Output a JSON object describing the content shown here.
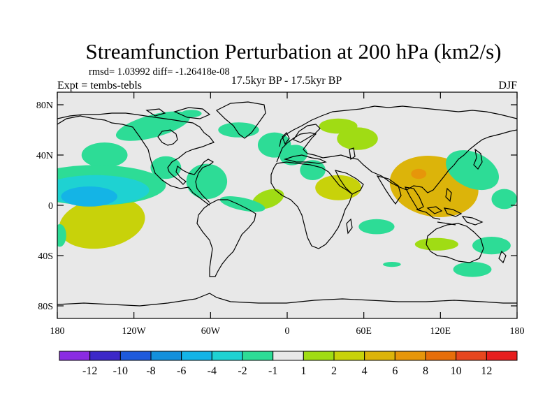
{
  "chart_data": {
    "type": "heatmap",
    "title": "Streamfunction Perturbation at 200 hPa (km2/s)",
    "stats": "rmsd= 1.03992 diff= -1.26418e-08",
    "left_label": "Expt = tembs-tebls",
    "center_label": "17.5kyr BP - 17.5kyr BP",
    "right_label": "DJF",
    "lon_range": [
      -180,
      180
    ],
    "lat_range": [
      -90,
      90
    ],
    "xticks": [
      {
        "value": -180,
        "label": "180"
      },
      {
        "value": -120,
        "label": "120W"
      },
      {
        "value": -60,
        "label": "60W"
      },
      {
        "value": 0,
        "label": "0"
      },
      {
        "value": 60,
        "label": "60E"
      },
      {
        "value": 120,
        "label": "120E"
      },
      {
        "value": 180,
        "label": "180"
      }
    ],
    "yticks": [
      {
        "value": 80,
        "label": "80N"
      },
      {
        "value": 40,
        "label": "40N"
      },
      {
        "value": 0,
        "label": "0"
      },
      {
        "value": -40,
        "label": "40S"
      },
      {
        "value": -80,
        "label": "80S"
      }
    ],
    "colorbar": {
      "colors": [
        "#8a2be2",
        "#3c28c8",
        "#1e5adc",
        "#1490dc",
        "#14b4e6",
        "#1ed2d2",
        "#2ddc96",
        "#e8e8e8",
        "#a0dc14",
        "#c8d20a",
        "#dcb40a",
        "#e6960a",
        "#e66e0a",
        "#e6461e",
        "#e61e1e"
      ],
      "labels": [
        "-12",
        "-10",
        "-8",
        "-6",
        "-4",
        "-2",
        "-1",
        "1",
        "2",
        "4",
        "6",
        "8",
        "10",
        "12"
      ]
    },
    "field_features": [
      {
        "lon": -105,
        "lat": 63,
        "rx": 30,
        "ry": 9,
        "value": -1.2,
        "angle": -15
      },
      {
        "lon": -38,
        "lat": 60,
        "rx": 16,
        "ry": 6,
        "value": -1.2
      },
      {
        "lon": -75,
        "lat": 73,
        "rx": 8,
        "ry": 3,
        "value": -1.2
      },
      {
        "lon": -10,
        "lat": 48,
        "rx": 13,
        "ry": 10,
        "value": -1.2
      },
      {
        "lon": -95,
        "lat": 30,
        "rx": 12,
        "ry": 9,
        "value": -1.2
      },
      {
        "lon": -143,
        "lat": 40,
        "rx": 18,
        "ry": 10,
        "value": -1.3
      },
      {
        "lon": -63,
        "lat": 19,
        "rx": 16,
        "ry": 14,
        "value": -1.5
      },
      {
        "lon": 5,
        "lat": 40,
        "rx": 11,
        "ry": 8,
        "value": -1.3,
        "angle": -10
      },
      {
        "lon": 20,
        "lat": 28,
        "rx": 10,
        "ry": 8,
        "value": -1.3
      },
      {
        "lon": 40,
        "lat": 63,
        "rx": 15,
        "ry": 6,
        "value": 1.5
      },
      {
        "lon": 55,
        "lat": 53,
        "rx": 16,
        "ry": 9,
        "value": 1.5
      },
      {
        "lon": 40,
        "lat": 14,
        "rx": 18,
        "ry": 10,
        "value": 2.5
      },
      {
        "lon": -15,
        "lat": 5,
        "rx": 13,
        "ry": 7,
        "value": 1.5,
        "angle": -20
      },
      {
        "lon": -145,
        "lat": -14,
        "rx": 34,
        "ry": 20,
        "value": 3.5,
        "angle": -10
      },
      {
        "lon": -150,
        "lat": 16,
        "rx": 55,
        "ry": 16,
        "value": -1.5
      },
      {
        "lon": -150,
        "lat": 12,
        "rx": 42,
        "ry": 12,
        "value": -3.0
      },
      {
        "lon": -155,
        "lat": 7,
        "rx": 22,
        "ry": 8,
        "value": -4.5
      },
      {
        "lon": 115,
        "lat": 15,
        "rx": 35,
        "ry": 24,
        "value": 4.5,
        "angle": 10
      },
      {
        "lon": 103,
        "lat": 25,
        "rx": 6,
        "ry": 4,
        "value": 7
      },
      {
        "lon": 145,
        "lat": 28,
        "rx": 22,
        "ry": 14,
        "value": -2.0,
        "angle": 25
      },
      {
        "lon": 170,
        "lat": 5,
        "rx": 10,
        "ry": 8,
        "value": -1.3
      },
      {
        "lon": 70,
        "lat": -17,
        "rx": 14,
        "ry": 6,
        "value": -1.5
      },
      {
        "lon": 117,
        "lat": -31,
        "rx": 17,
        "ry": 5,
        "value": 1.5
      },
      {
        "lon": 160,
        "lat": -32,
        "rx": 15,
        "ry": 7,
        "value": -1.5
      },
      {
        "lon": 145,
        "lat": -51,
        "rx": 15,
        "ry": 6,
        "value": -1.3
      },
      {
        "lon": 82,
        "lat": -47,
        "rx": 7,
        "ry": 2,
        "value": -1.2
      },
      {
        "lon": -35,
        "lat": 1,
        "rx": 18,
        "ry": 5,
        "value": -1.3,
        "angle": 12
      },
      {
        "lon": -178,
        "lat": -24,
        "rx": 5,
        "ry": 9,
        "value": -1.3
      }
    ]
  }
}
